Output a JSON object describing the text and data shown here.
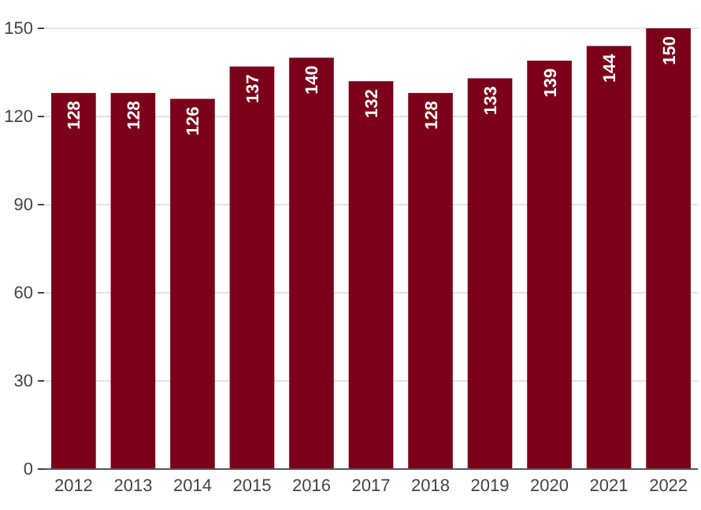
{
  "chart_data": {
    "type": "bar",
    "categories": [
      "2012",
      "2013",
      "2014",
      "2015",
      "2016",
      "2017",
      "2018",
      "2019",
      "2020",
      "2021",
      "2022"
    ],
    "values": [
      128,
      128,
      126,
      137,
      140,
      132,
      128,
      133,
      139,
      144,
      150
    ],
    "color": "#7b0019",
    "ylim": [
      0,
      150
    ],
    "yticks": [
      0,
      30,
      60,
      90,
      120,
      150
    ],
    "grid": "y",
    "data_labels": true
  }
}
